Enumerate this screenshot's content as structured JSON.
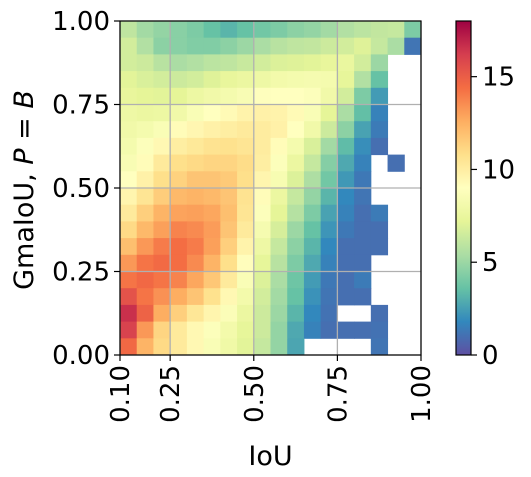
{
  "chart_data": {
    "type": "heatmap",
    "xlabel": "IoU",
    "ylabel_main": "GmaIoU, ",
    "ylabel_math": "P = B",
    "xlim": [
      0.1,
      1.0
    ],
    "ylim": [
      0.0,
      1.0
    ],
    "x_ticks": [
      "0.10",
      "0.25",
      "0.50",
      "0.75",
      "1.00"
    ],
    "x_tick_values": [
      0.1,
      0.25,
      0.5,
      0.75,
      1.0
    ],
    "y_ticks": [
      "0.00",
      "0.25",
      "0.50",
      "0.75",
      "1.00"
    ],
    "y_tick_values": [
      0.0,
      0.25,
      0.5,
      0.75,
      1.0
    ],
    "grid": true,
    "colormap": "Spectral_r",
    "colorbar": {
      "range": [
        0,
        18
      ],
      "ticks": [
        "0",
        "5",
        "10",
        "15"
      ],
      "tick_values": [
        0,
        5,
        10,
        15
      ]
    },
    "grid_shape": {
      "cols": 18,
      "rows": 20
    },
    "values_note_rows_top_to_bottom": true,
    "values": [
      [
        6,
        5.2,
        4.8,
        4.5,
        4.2,
        3.6,
        3.2,
        3.6,
        3.9,
        4.2,
        4.6,
        4.8,
        5.2,
        5.6,
        5.9,
        6.1,
        6.2,
        4.2
      ],
      [
        6.6,
        5.6,
        4.6,
        4.5,
        4.3,
        4.3,
        4.6,
        5,
        5.4,
        5.8,
        6,
        6.1,
        6.4,
        6.6,
        7,
        6.2,
        5.4,
        1.2
      ],
      [
        6.6,
        6.4,
        5.8,
        5.4,
        5.6,
        5.9,
        6,
        6.3,
        6.6,
        6.9,
        7,
        7.1,
        7.4,
        7.5,
        6.6,
        5,
        null,
        null
      ],
      [
        7.1,
        6.8,
        6.6,
        6.4,
        6.6,
        7,
        7.4,
        7.6,
        7.8,
        8.1,
        8.2,
        8.3,
        8.2,
        7.3,
        5.6,
        3.6,
        null,
        null
      ],
      [
        7.4,
        7.2,
        7.1,
        7.2,
        7.7,
        8,
        8.2,
        8.5,
        8.9,
        9,
        9,
        8.8,
        8,
        6.6,
        4.2,
        2.4,
        null,
        null
      ],
      [
        7.8,
        7.6,
        7.7,
        8,
        8.6,
        9,
        9.3,
        9.7,
        9.8,
        9.7,
        9.3,
        8.6,
        7.2,
        5.4,
        3.5,
        1.6,
        null,
        null
      ],
      [
        8,
        8.2,
        8.6,
        9.2,
        9.5,
        9.8,
        10,
        10.2,
        10.1,
        9.8,
        9,
        8,
        6.4,
        4.6,
        2.6,
        1.4,
        null,
        null
      ],
      [
        8.2,
        8.8,
        9.4,
        10,
        10.3,
        10.6,
        10.7,
        10.5,
        10.1,
        9.2,
        8.2,
        6.8,
        5.2,
        3.4,
        2,
        1,
        null,
        null
      ],
      [
        8.5,
        9.2,
        10.2,
        10.8,
        11,
        11.2,
        11.2,
        10.9,
        10,
        8.8,
        7.6,
        6.2,
        4.4,
        2.8,
        1.6,
        null,
        1,
        null
      ],
      [
        9,
        9.8,
        10.8,
        11.3,
        11.8,
        11.8,
        11.6,
        10.8,
        9.6,
        8.4,
        6.9,
        5.5,
        3.9,
        2.3,
        1.3,
        null,
        null,
        null
      ],
      [
        9.6,
        10.5,
        11.5,
        12.2,
        12.4,
        12.2,
        11.8,
        10.6,
        9.2,
        7.6,
        6.2,
        4.8,
        3.2,
        1.8,
        1.2,
        null,
        null,
        null
      ],
      [
        10.2,
        11.4,
        12.4,
        12.9,
        13,
        12.8,
        12,
        10.5,
        8.8,
        7.2,
        5.7,
        4.2,
        2.6,
        1.6,
        1,
        1.4,
        null,
        null
      ],
      [
        11,
        12.2,
        13,
        13.8,
        13.6,
        13.1,
        11.8,
        10.2,
        8.3,
        6.7,
        5,
        3.6,
        2.2,
        1.3,
        1,
        1,
        null,
        null
      ],
      [
        12,
        13.2,
        14,
        14.4,
        14,
        13,
        11.4,
        9.7,
        7.8,
        6.2,
        4.6,
        3.2,
        1.8,
        1,
        1,
        1,
        null,
        null
      ],
      [
        13.2,
        14.2,
        14.5,
        14.4,
        13.6,
        12.4,
        10.8,
        9.1,
        7.3,
        5.8,
        4.2,
        2.8,
        1.6,
        1,
        1,
        null,
        null,
        null
      ],
      [
        14.2,
        14.6,
        14.2,
        13.8,
        12.8,
        11.7,
        10.2,
        8.6,
        6.9,
        5.4,
        3.8,
        2.4,
        1.3,
        1,
        1.4,
        null,
        null,
        null
      ],
      [
        15.4,
        14.2,
        13.4,
        12.6,
        11.8,
        10.7,
        9.4,
        8.1,
        6.6,
        5.2,
        3.6,
        2.1,
        1.2,
        1,
        1,
        null,
        null,
        null
      ],
      [
        16.6,
        14.8,
        12.6,
        11.4,
        10.4,
        9.6,
        8.7,
        7.6,
        6.4,
        5,
        3.2,
        1.8,
        1.1,
        null,
        null,
        1,
        null,
        null
      ],
      [
        16,
        13.2,
        11.2,
        10.2,
        9.4,
        8.8,
        8.1,
        7.3,
        6.4,
        4.8,
        2.8,
        1.6,
        1,
        1,
        1,
        1.1,
        null,
        null
      ],
      [
        14.6,
        12.4,
        11,
        10.2,
        9.4,
        8.6,
        7.9,
        7.1,
        6.2,
        4.8,
        2.7,
        null,
        null,
        null,
        null,
        1.2,
        null,
        null
      ]
    ]
  }
}
